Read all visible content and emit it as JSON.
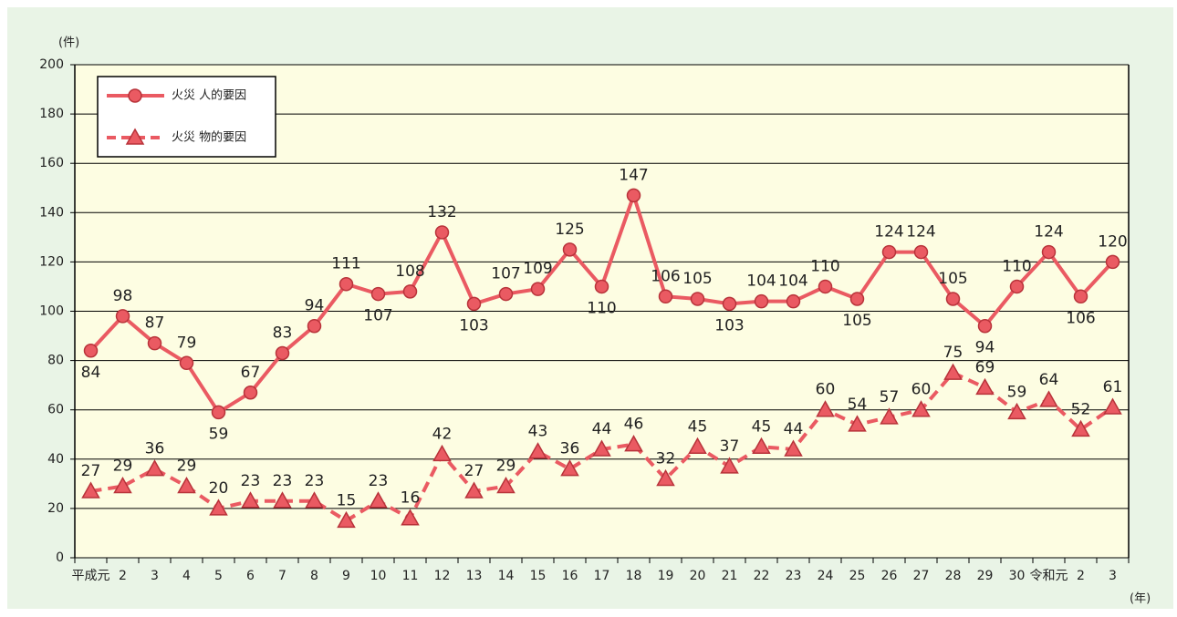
{
  "chart_data": {
    "type": "line",
    "y_label": "(件)",
    "x_label": "(年)",
    "categories": [
      "平成元",
      "2",
      "3",
      "4",
      "5",
      "6",
      "7",
      "8",
      "9",
      "10",
      "11",
      "12",
      "13",
      "14",
      "15",
      "16",
      "17",
      "18",
      "19",
      "20",
      "21",
      "22",
      "23",
      "24",
      "25",
      "26",
      "27",
      "28",
      "29",
      "30",
      "令和元",
      "2",
      "3"
    ],
    "series": [
      {
        "name": "火災 人的要因",
        "color": "#ea5a62",
        "marker": "circle",
        "dash": false,
        "values": [
          84,
          98,
          87,
          79,
          59,
          67,
          83,
          94,
          111,
          107,
          108,
          132,
          103,
          107,
          109,
          125,
          110,
          147,
          106,
          105,
          103,
          104,
          104,
          110,
          105,
          124,
          124,
          105,
          94,
          110,
          124,
          106,
          120
        ]
      },
      {
        "name": "火災 物的要因",
        "color": "#ea5a62",
        "marker": "triangle",
        "dash": true,
        "values": [
          27,
          29,
          36,
          29,
          20,
          23,
          23,
          23,
          15,
          23,
          16,
          42,
          27,
          29,
          43,
          36,
          44,
          46,
          32,
          45,
          37,
          45,
          44,
          60,
          54,
          57,
          60,
          75,
          69,
          59,
          64,
          52,
          61
        ]
      }
    ],
    "ylim": [
      0,
      200
    ],
    "yticks": [
      0,
      20,
      40,
      60,
      80,
      100,
      120,
      140,
      160,
      180,
      200
    ],
    "grid": true,
    "legend": "upper left"
  }
}
